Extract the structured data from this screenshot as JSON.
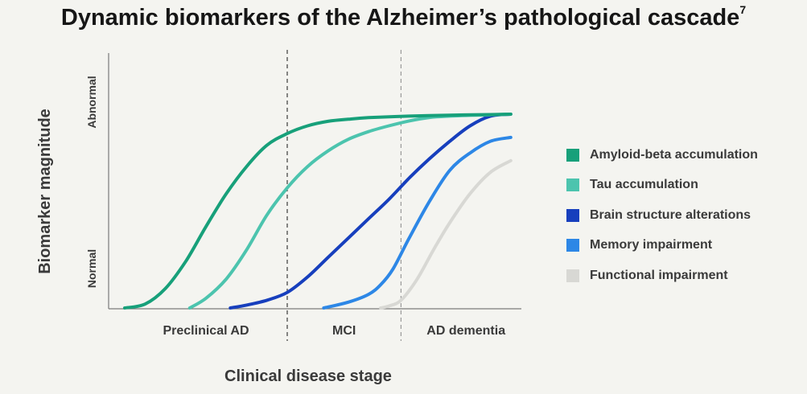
{
  "title": "Dynamic biomarkers of the Alzheimer’s pathological cascade",
  "title_superscript": "7",
  "chart_data": {
    "type": "line",
    "title": "Dynamic biomarkers of the Alzheimer’s pathological cascade",
    "xlabel": "Clinical disease stage",
    "ylabel": "Biomarker magnitude",
    "y_ticks": [
      "Normal",
      "Abnormal"
    ],
    "ylim": [
      0,
      1
    ],
    "stages": [
      {
        "label": "Preclinical AD",
        "end": 0.4
      },
      {
        "label": "MCI",
        "end": 0.68
      },
      {
        "label": "AD dementia",
        "end": 1.0
      }
    ],
    "legend_position": "right",
    "series": [
      {
        "name": "Amyloid-beta accumulation",
        "color": "#17a07a",
        "x": [
          0.0,
          0.05,
          0.1,
          0.15,
          0.2,
          0.25,
          0.3,
          0.35,
          0.4,
          0.45,
          0.5,
          0.55,
          0.6,
          0.7,
          0.8,
          0.9,
          0.95
        ],
        "y": [
          0.0,
          0.02,
          0.1,
          0.24,
          0.42,
          0.59,
          0.73,
          0.84,
          0.9,
          0.94,
          0.963,
          0.974,
          0.982,
          0.99,
          0.995,
          0.998,
          1.0
        ]
      },
      {
        "name": "Tau accumulation",
        "color": "#4cc4ae",
        "x": [
          0.16,
          0.2,
          0.25,
          0.3,
          0.35,
          0.4,
          0.45,
          0.5,
          0.55,
          0.6,
          0.65,
          0.7,
          0.75,
          0.8,
          0.9,
          0.95
        ],
        "y": [
          0.0,
          0.05,
          0.15,
          0.3,
          0.48,
          0.62,
          0.73,
          0.81,
          0.87,
          0.91,
          0.94,
          0.965,
          0.983,
          0.99,
          0.997,
          1.0
        ]
      },
      {
        "name": "Brain structure alterations",
        "color": "#173fbd",
        "x": [
          0.26,
          0.3,
          0.35,
          0.4,
          0.45,
          0.5,
          0.55,
          0.6,
          0.65,
          0.7,
          0.75,
          0.8,
          0.85,
          0.9,
          0.95
        ],
        "y": [
          0.0,
          0.015,
          0.04,
          0.08,
          0.16,
          0.26,
          0.36,
          0.46,
          0.56,
          0.67,
          0.77,
          0.86,
          0.94,
          0.99,
          1.0
        ]
      },
      {
        "name": "Memory impairment",
        "color": "#2d87e6",
        "x": [
          0.49,
          0.55,
          0.6,
          0.63,
          0.66,
          0.7,
          0.75,
          0.8,
          0.85,
          0.9,
          0.95
        ],
        "y": [
          0.0,
          0.03,
          0.07,
          0.12,
          0.2,
          0.36,
          0.55,
          0.71,
          0.8,
          0.86,
          0.88
        ]
      },
      {
        "name": "Functional impairment",
        "color": "#d8d8d4",
        "x": [
          0.63,
          0.65,
          0.68,
          0.72,
          0.76,
          0.8,
          0.85,
          0.9,
          0.95
        ],
        "y": [
          0.0,
          0.01,
          0.04,
          0.15,
          0.3,
          0.44,
          0.59,
          0.7,
          0.76
        ]
      }
    ]
  }
}
